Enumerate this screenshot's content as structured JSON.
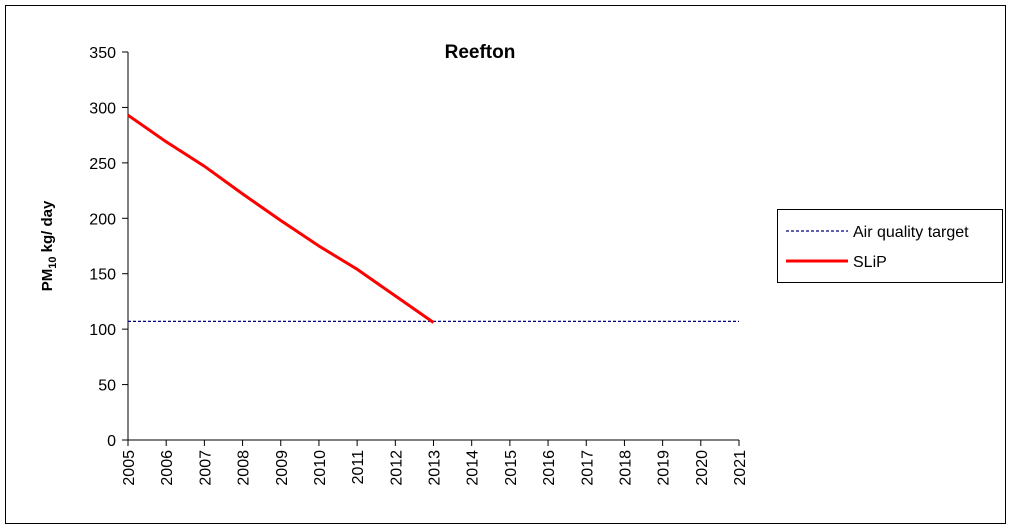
{
  "chart_data": {
    "type": "line",
    "title": "Reefton",
    "y_label": {
      "text": "PM",
      "subscript": "10",
      "suffix": " kg/ day"
    },
    "x": [
      2005,
      2006,
      2007,
      2008,
      2009,
      2010,
      2011,
      2012,
      2013,
      2014,
      2015,
      2016,
      2017,
      2018,
      2019,
      2020,
      2021
    ],
    "xlim": [
      2005,
      2021
    ],
    "xticks": [
      2005,
      2006,
      2007,
      2008,
      2009,
      2010,
      2011,
      2012,
      2013,
      2014,
      2015,
      2016,
      2017,
      2018,
      2019,
      2020,
      2021
    ],
    "ylim": [
      0,
      350
    ],
    "yticks": [
      0,
      50,
      100,
      150,
      200,
      250,
      300,
      350
    ],
    "legend": "right",
    "series": [
      {
        "name": "Air quality target",
        "color": "#000080",
        "dashed": true,
        "values": [
          107,
          107,
          107,
          107,
          107,
          107,
          107,
          107,
          107,
          107,
          107,
          107,
          107,
          107,
          107,
          107,
          107
        ]
      },
      {
        "name": "SLiP",
        "color": "#ff0000",
        "dashed": false,
        "values": [
          293,
          269,
          247,
          222,
          198,
          175,
          154,
          130,
          106,
          null,
          null,
          null,
          null,
          null,
          null,
          null,
          null
        ]
      }
    ]
  }
}
